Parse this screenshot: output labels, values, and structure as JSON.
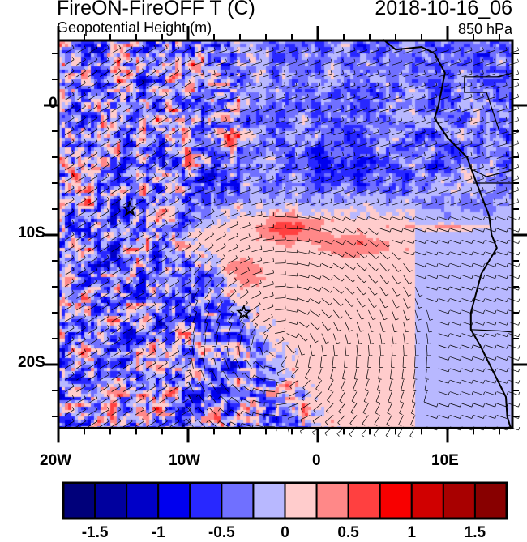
{
  "header": {
    "title": "FireON-FireOFF T (C)",
    "date": "2018-10-16_06",
    "subtitle": "Geopotential Height (m)",
    "level": "850 hPa"
  },
  "map": {
    "lon_range": [
      -20,
      15
    ],
    "lat_range": [
      -24.9,
      5
    ],
    "lon_ticks": [
      {
        "value": -20,
        "label": "20W"
      },
      {
        "value": -10,
        "label": "10W"
      },
      {
        "value": 0,
        "label": "0"
      },
      {
        "value": 10,
        "label": "10E"
      }
    ],
    "lat_ticks": [
      {
        "value": 0,
        "label": "0"
      },
      {
        "value": -10,
        "label": "10S"
      },
      {
        "value": -20,
        "label": "20S"
      }
    ],
    "markers": [
      {
        "type": "star",
        "lon": -14.5,
        "lat": -8
      },
      {
        "type": "star",
        "lon": -5.7,
        "lat": -16
      }
    ],
    "overlays": [
      "wind-barbs",
      "coastlines",
      "country-borders"
    ]
  },
  "colorbar": {
    "boundaries": [
      -1.5,
      -1.25,
      -1,
      -0.75,
      -0.5,
      -0.25,
      0,
      0.25,
      0.5,
      0.75,
      1,
      1.25,
      1.5
    ],
    "labels": [
      "-1.5",
      "-1",
      "-0.5",
      "0",
      "0.5",
      "1",
      "1.5"
    ],
    "colors": [
      "#00007a",
      "#00009e",
      "#0000c8",
      "#0000ee",
      "#2828ff",
      "#7070ff",
      "#b8b8ff",
      "#ffcccc",
      "#ff8888",
      "#ff4040",
      "#f80000",
      "#d00000",
      "#a80000",
      "#880000"
    ]
  }
}
